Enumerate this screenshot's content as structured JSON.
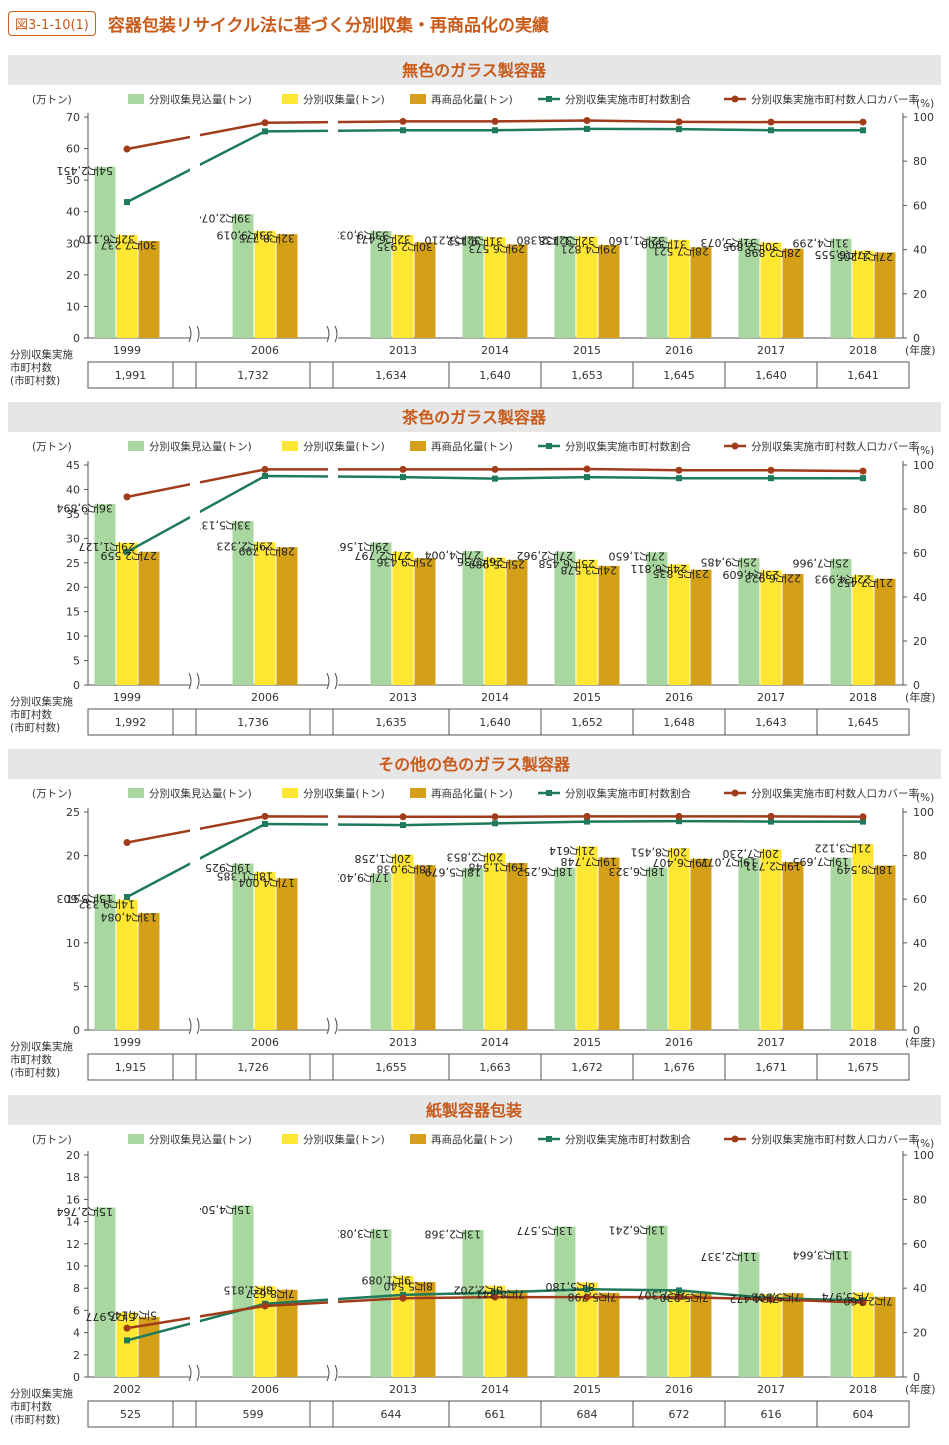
{
  "header": {
    "label": "図3-1-10(1)",
    "title": "容器包装リサイクル法に基づく分別収集・再商品化の実績"
  },
  "common": {
    "legend": [
      "分別収集見込量(トン)",
      "分別収集量(トン)",
      "再商品化量(トン)",
      "分別収集実施市町村数割合",
      "分別収集実施市町村数人口カバー率"
    ],
    "y_left_unit": "(万トン)",
    "y_right_unit": "(%)",
    "x_unit": "(年度)",
    "table_label": [
      "分別収集実施",
      "市町村数",
      "(市町村数)"
    ],
    "colors": {
      "planned": "#a8d8a0",
      "collected": "#ffe633",
      "recycled": "#d4a017",
      "municipal_ratio": "#1e7a5a",
      "population_cover": "#a03c1a",
      "title_band": "#e6e6e6",
      "title_text": "#c85a1a"
    }
  },
  "chart_data": [
    {
      "type": "bar",
      "title": "無色のガラス製容器",
      "categories": [
        "1999",
        "2006",
        "2013",
        "2014",
        "2015",
        "2016",
        "2017",
        "2018"
      ],
      "ylim": [
        0,
        70
      ],
      "yticks": [
        0,
        10,
        20,
        30,
        40,
        50,
        60,
        70
      ],
      "y2lim": [
        0,
        100
      ],
      "y2ticks": [
        0,
        20,
        40,
        60,
        80,
        100
      ],
      "series": [
        {
          "name": "分別収集見込量(トン)",
          "values": [
            54.2451,
            39.2074,
            33.9032,
            32.321,
            32.238,
            32.116,
            31.5073,
            31.4299
          ],
          "labels": [
            "54万2,451",
            "39万2,074",
            "33万9,032",
            "32万3,210",
            "32万2,380",
            "32万1,160",
            "31万5,073",
            "31万4,299"
          ]
        },
        {
          "name": "分別収集量(トン)",
          "values": [
            32.611,
            33.9019,
            32.6471,
            31.9152,
            32.1138,
            31.09,
            30.2895,
            27.6555
          ],
          "labels": [
            "32万6,110",
            "33万9,019",
            "32万6,471",
            "31万9,152",
            "32万1,138",
            "31万900",
            "30万2,895",
            "27万6,555"
          ]
        },
        {
          "name": "再商品化量(トン)",
          "values": [
            30.7237,
            32.8775,
            30.2935,
            29.6573,
            29.4821,
            28.7521,
            28.2898,
            27.1205
          ],
          "labels": [
            "30万7,237",
            "32万8,775",
            "30万2,935",
            "29万6,573",
            "29万4,821",
            "28万7,521",
            "28万2,898",
            "27万1,205"
          ]
        }
      ],
      "lines": [
        {
          "name": "分別収集実施市町村数割合",
          "values": [
            61.5,
            93.5,
            94.0,
            94.0,
            94.6,
            94.5,
            94.0,
            94.0
          ]
        },
        {
          "name": "分別収集実施市町村数人口カバー率",
          "values": [
            85.5,
            97.4,
            98.0,
            98.0,
            98.4,
            97.8,
            97.7,
            97.7
          ]
        }
      ],
      "table": [
        "1,991",
        "1,732",
        "1,634",
        "1,640",
        "1,653",
        "1,645",
        "1,640",
        "1,641"
      ]
    },
    {
      "type": "bar",
      "title": "茶色のガラス製容器",
      "categories": [
        "1999",
        "2006",
        "2013",
        "2014",
        "2015",
        "2016",
        "2017",
        "2018"
      ],
      "ylim": [
        0,
        45
      ],
      "yticks": [
        0,
        5,
        10,
        15,
        20,
        25,
        30,
        35,
        40,
        45
      ],
      "y2lim": [
        0,
        100
      ],
      "y2ticks": [
        0,
        20,
        40,
        60,
        80,
        100
      ],
      "series": [
        {
          "name": "分別収集見込量(トン)",
          "values": [
            36.9894,
            33.5137,
            29.1567,
            27.4004,
            27.2962,
            27.165,
            25.9485,
            25.7966
          ],
          "labels": [
            "36万9,894",
            "33万5,137",
            "29万1,567",
            "27万4,004",
            "27万2,962",
            "27万1,650",
            "25万9,485",
            "25万7,966"
          ]
        },
        {
          "name": "分別収集量(トン)",
          "values": [
            29.1127,
            29.2323,
            27.2797,
            26.0736,
            25.6458,
            24.6811,
            23.4609,
            22.4993
          ],
          "labels": [
            "29万1,127",
            "29万2,323",
            "27万2,797",
            "26万736",
            "25万6,458",
            "24万6,811",
            "23万4,609",
            "22万4,993"
          ]
        },
        {
          "name": "再商品化量(トン)",
          "values": [
            27.2559,
            28.1799,
            25.9436,
            25.5989,
            24.3578,
            23.5835,
            22.6923,
            21.7452
          ],
          "labels": [
            "27万2,559",
            "28万1,799",
            "25万9,436",
            "25万5,989",
            "24万3,578",
            "23万5,835",
            "22万6,923",
            "21万7,452"
          ]
        }
      ],
      "lines": [
        {
          "name": "分別収集実施市町村数割合",
          "values": [
            60.5,
            95.0,
            94.5,
            93.8,
            94.5,
            94.0,
            94.0,
            94.0
          ]
        },
        {
          "name": "分別収集実施市町村数人口カバー率",
          "values": [
            85.5,
            98.0,
            98.0,
            98.0,
            98.2,
            97.6,
            97.6,
            97.2
          ]
        }
      ],
      "table": [
        "1,992",
        "1,736",
        "1,635",
        "1,640",
        "1,652",
        "1,648",
        "1,643",
        "1,645"
      ]
    },
    {
      "type": "bar",
      "title": "その他の色のガラス製容器",
      "categories": [
        "1999",
        "2006",
        "2013",
        "2014",
        "2015",
        "2016",
        "2017",
        "2018"
      ],
      "ylim": [
        0,
        25
      ],
      "yticks": [
        0,
        5,
        10,
        15,
        20,
        25
      ],
      "y2lim": [
        0,
        100
      ],
      "y2ticks": [
        0,
        20,
        40,
        60,
        80,
        100
      ],
      "series": [
        {
          "name": "分別収集見込量(トン)",
          "values": [
            15.5603,
            19.0925,
            17.9402,
            18.5679,
            18.6252,
            18.6323,
            19.7077,
            19.7695
          ],
          "labels": [
            "15万5,603",
            "19万925",
            "17万9,402",
            "18万5,679",
            "18万6,252",
            "18万6,323",
            "19万7,077",
            "19万7,695"
          ]
        },
        {
          "name": "分別収集量(トン)",
          "values": [
            14.9332,
            18.1385,
            20.1258,
            20.2853,
            21.0614,
            20.8451,
            20.723,
            21.3122
          ],
          "labels": [
            "14万9,332",
            "18万1,385",
            "20万1,258",
            "20万2,853",
            "21万614",
            "20万8,451",
            "20万7,230",
            "21万3,122"
          ]
        },
        {
          "name": "再商品化量(トン)",
          "values": [
            13.4084,
            17.4004,
            18.9038,
            19.1548,
            19.7748,
            19.6407,
            19.2731,
            18.8549
          ],
          "labels": [
            "13万4,084",
            "17万4,004",
            "18万9,038",
            "19万1,548",
            "19万7,748",
            "19万6,407",
            "19万2,731",
            "18万8,549"
          ]
        }
      ],
      "lines": [
        {
          "name": "分別収集実施市町村数割合",
          "values": [
            61.0,
            94.5,
            94.0,
            94.8,
            95.6,
            95.8,
            95.6,
            95.6
          ]
        },
        {
          "name": "分別収集実施市町村数人口カバー率",
          "values": [
            86.0,
            98.0,
            97.8,
            97.8,
            98.0,
            98.0,
            98.0,
            97.8
          ]
        }
      ],
      "table": [
        "1,915",
        "1,726",
        "1,655",
        "1,663",
        "1,672",
        "1,676",
        "1,671",
        "1,675"
      ]
    },
    {
      "type": "bar",
      "title": "紙製容器包装",
      "categories": [
        "2002",
        "2006",
        "2013",
        "2014",
        "2015",
        "2016",
        "2017",
        "2018"
      ],
      "ylim": [
        0,
        20
      ],
      "yticks": [
        0,
        2,
        4,
        6,
        8,
        10,
        12,
        14,
        16,
        18,
        20
      ],
      "y2lim": [
        0,
        100
      ],
      "y2ticks": [
        0,
        20,
        40,
        60,
        80,
        100
      ],
      "series": [
        {
          "name": "分別収集見込量(トン)",
          "values": [
            15.2764,
            15.4504,
            13.3082,
            13.2368,
            13.5577,
            13.6241,
            11.2337,
            11.3664
          ],
          "labels": [
            "15万2,764",
            "15万4,504",
            "13万3,082",
            "13万2,368",
            "13万5,577",
            "13万6,241",
            "11万2,337",
            "11万3,664"
          ]
        },
        {
          "name": "分別収集量(トン)",
          "values": [
            5.7977,
            8.1815,
            9.1089,
            8.2202,
            8.518,
            7.7307,
            7.4472,
            7.5974
          ],
          "labels": [
            "5万7,977",
            "8万1,815",
            "9万1,089",
            "8万2,202",
            "8万5,180",
            "7万7,307",
            "7万4,472",
            "7万5,974"
          ]
        },
        {
          "name": "再商品化量(トン)",
          "values": [
            5.4145,
            7.8627,
            8.554,
            7.8341,
            7.5798,
            7.523,
            7.5502,
            7.216
          ],
          "labels": [
            "5万4,145",
            "7万8,627",
            "8万5,540",
            "7万8,341",
            "7万5,798",
            "7万5,230",
            "7万5,502",
            "7万2,160"
          ]
        }
      ],
      "lines": [
        {
          "name": "分別収集実施市町村数割合",
          "values": [
            16.5,
            33.0,
            37.0,
            38.0,
            39.5,
            39.0,
            35.5,
            34.5
          ]
        },
        {
          "name": "分別収集実施市町村数人口カバー率",
          "values": [
            22.0,
            32.0,
            35.5,
            36.0,
            36.0,
            36.0,
            35.0,
            33.5
          ]
        }
      ],
      "table": [
        "525",
        "599",
        "644",
        "661",
        "684",
        "672",
        "616",
        "604"
      ]
    }
  ]
}
